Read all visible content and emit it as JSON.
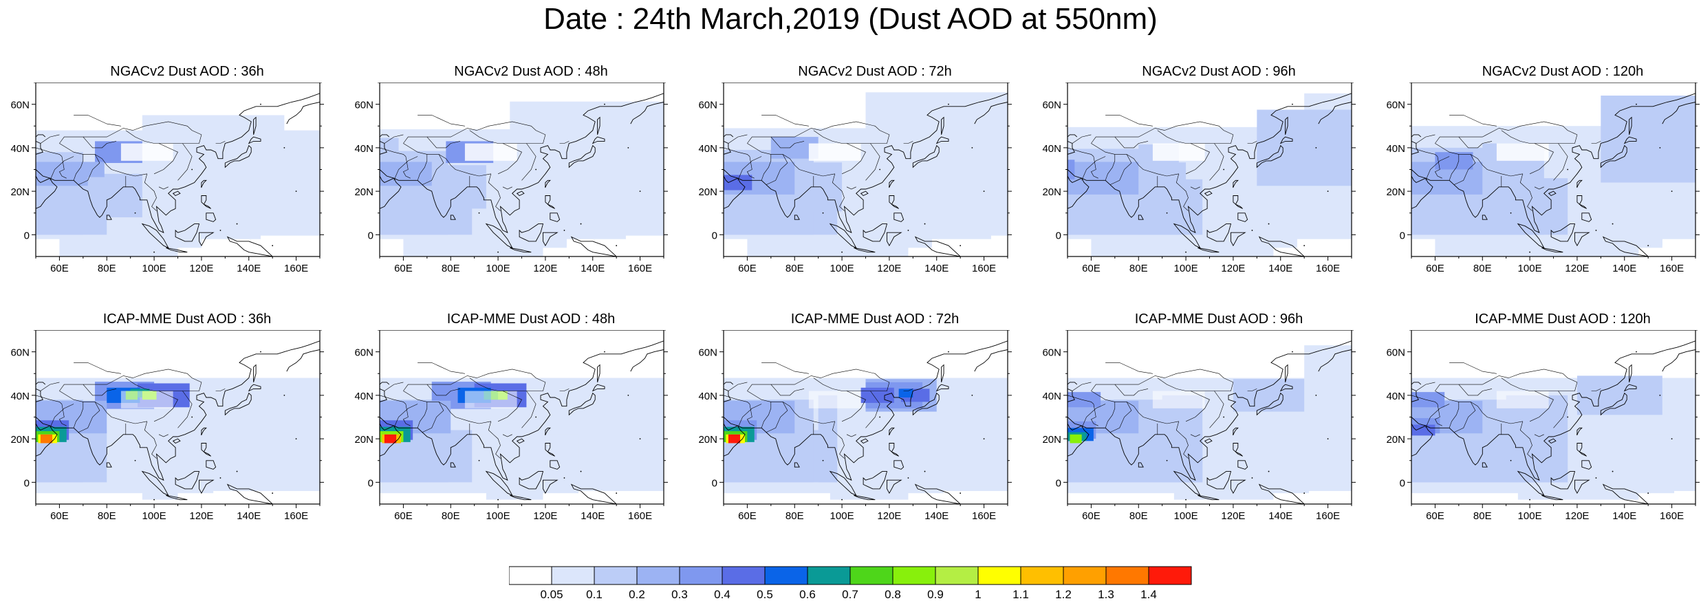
{
  "title": "Date : 24th March,2019 (Dust AOD at 550nm)",
  "lat_labels": [
    "60N",
    "40N",
    "20N",
    "0"
  ],
  "lon_labels": [
    "60E",
    "80E",
    "100E",
    "120E",
    "140E",
    "160E"
  ],
  "panels": [
    {
      "title": "NGACv2 Dust AOD : 36h"
    },
    {
      "title": "NGACv2 Dust AOD : 48h"
    },
    {
      "title": "NGACv2 Dust AOD : 72h"
    },
    {
      "title": "NGACv2 Dust AOD : 96h"
    },
    {
      "title": "NGACv2 Dust AOD : 120h"
    },
    {
      "title": "ICAP-MME Dust AOD : 36h"
    },
    {
      "title": "ICAP-MME Dust AOD : 48h"
    },
    {
      "title": "ICAP-MME Dust AOD : 72h"
    },
    {
      "title": "ICAP-MME Dust AOD : 96h"
    },
    {
      "title": "ICAP-MME Dust AOD : 120h"
    }
  ],
  "colorbar": {
    "labels": [
      "0.05",
      "0.1",
      "0.2",
      "0.3",
      "0.4",
      "0.5",
      "0.6",
      "0.7",
      "0.8",
      "0.9",
      "1",
      "1.1",
      "1.2",
      "1.3",
      "1.4"
    ],
    "colors": [
      "#ffffff",
      "#dce6fb",
      "#bccdf7",
      "#9cb3f3",
      "#7f98ef",
      "#5a6de6",
      "#0a64e8",
      "#0a9a96",
      "#4ed61a",
      "#88f00c",
      "#b4ee44",
      "#ffff00",
      "#ffbf00",
      "#ffa000",
      "#ff7800",
      "#ff1a0a"
    ]
  }
}
